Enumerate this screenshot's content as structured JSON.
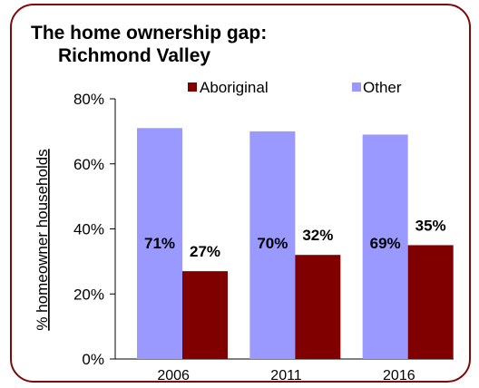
{
  "chart_data": {
    "type": "bar",
    "title_lines": [
      "The home ownership gap:",
      "Richmond Valley"
    ],
    "xlabel": "",
    "ylabel": "% homeowner households",
    "categories": [
      "2006",
      "2011",
      "2016"
    ],
    "series": [
      {
        "name": "Other",
        "values": [
          71,
          70,
          69
        ],
        "labels": [
          "71%",
          "70%",
          "69%"
        ],
        "color": "#9999ff"
      },
      {
        "name": "Aboriginal",
        "values": [
          27,
          32,
          35
        ],
        "labels": [
          "27%",
          "32%",
          "35%"
        ],
        "color": "#800000"
      }
    ],
    "ylim": [
      0,
      80
    ],
    "yticks": [
      "0%",
      "20%",
      "40%",
      "60%",
      "80%"
    ],
    "ytick_values": [
      0,
      20,
      40,
      60,
      80
    ],
    "legend_order": [
      "Aboriginal",
      "Other"
    ],
    "legend_position": "top",
    "grid": false
  },
  "colors": {
    "frame": "#7b0a0a",
    "other": "#9999ff",
    "aboriginal": "#800000"
  }
}
